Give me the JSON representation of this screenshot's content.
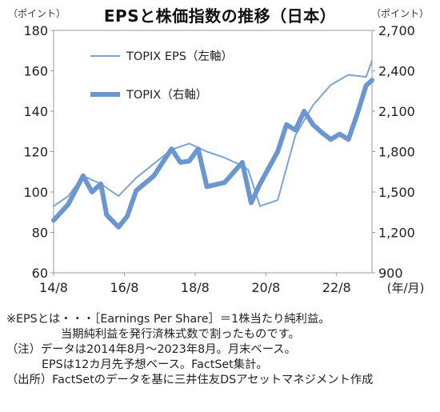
{
  "header": {
    "title": "EPSと株価指数の推移（日本）",
    "left_unit": "（ポイント）",
    "right_unit": "（ポイント）"
  },
  "chart_data": {
    "type": "line",
    "x_tick_labels": [
      "14/8",
      "16/8",
      "18/8",
      "20/8",
      "22/8"
    ],
    "x_unit_label": "(年/月)",
    "y_left": {
      "lim": [
        60,
        180
      ],
      "ticks": [
        60,
        80,
        100,
        120,
        140,
        160,
        180
      ]
    },
    "y_right": {
      "lim": [
        900,
        2700
      ],
      "ticks": [
        "900",
        "1,200",
        "1,500",
        "1,800",
        "2,100",
        "2,400",
        "2,700"
      ]
    },
    "grid": false,
    "legend_position": "top-left",
    "series": [
      {
        "name": "TOPIX EPS（左軸）",
        "axis": "left",
        "color": "#7aa4d6",
        "x": [
          "2014-08",
          "2015-01",
          "2015-06",
          "2015-12",
          "2016-06",
          "2016-12",
          "2017-06",
          "2017-12",
          "2018-06",
          "2018-12",
          "2019-06",
          "2019-12",
          "2020-02",
          "2020-06",
          "2020-12",
          "2021-06",
          "2021-12",
          "2022-06",
          "2022-12",
          "2023-06",
          "2023-08"
        ],
        "y": [
          93,
          98,
          108,
          104,
          98,
          107,
          114,
          121,
          124,
          120,
          117,
          113,
          111,
          93,
          96,
          128,
          143,
          153,
          158,
          157,
          165
        ]
      },
      {
        "name": "TOPIX（右軸）",
        "axis": "right",
        "color": "#6c96cf",
        "x": [
          "2014-08",
          "2015-01",
          "2015-06",
          "2015-09",
          "2015-12",
          "2016-02",
          "2016-06",
          "2016-09",
          "2016-12",
          "2017-06",
          "2017-12",
          "2018-03",
          "2018-06",
          "2018-09",
          "2018-12",
          "2019-06",
          "2019-12",
          "2020-03",
          "2020-06",
          "2020-12",
          "2021-03",
          "2021-06",
          "2021-09",
          "2021-12",
          "2022-03",
          "2022-06",
          "2022-09",
          "2022-12",
          "2023-03",
          "2023-06",
          "2023-08"
        ],
        "y": [
          1290,
          1410,
          1620,
          1500,
          1560,
          1330,
          1240,
          1320,
          1510,
          1620,
          1820,
          1720,
          1730,
          1820,
          1540,
          1570,
          1720,
          1420,
          1560,
          1800,
          2000,
          1960,
          2100,
          2000,
          1940,
          1890,
          1930,
          1890,
          2080,
          2290,
          2330
        ]
      }
    ]
  },
  "notes": {
    "line1": "※EPSとは・・・［Earnings Per Share］＝1株当たり純利益。",
    "line2": "当期純利益を発行済株式数で割ったものです。",
    "line3": "（注）データは2014年8月～2023年8月。月末ベース。",
    "line4": "EPSは12カ月先予想ベース。FactSet集計。",
    "line5": "（出所）FactSetのデータを基に三井住友DSアセットマネジメント作成"
  }
}
